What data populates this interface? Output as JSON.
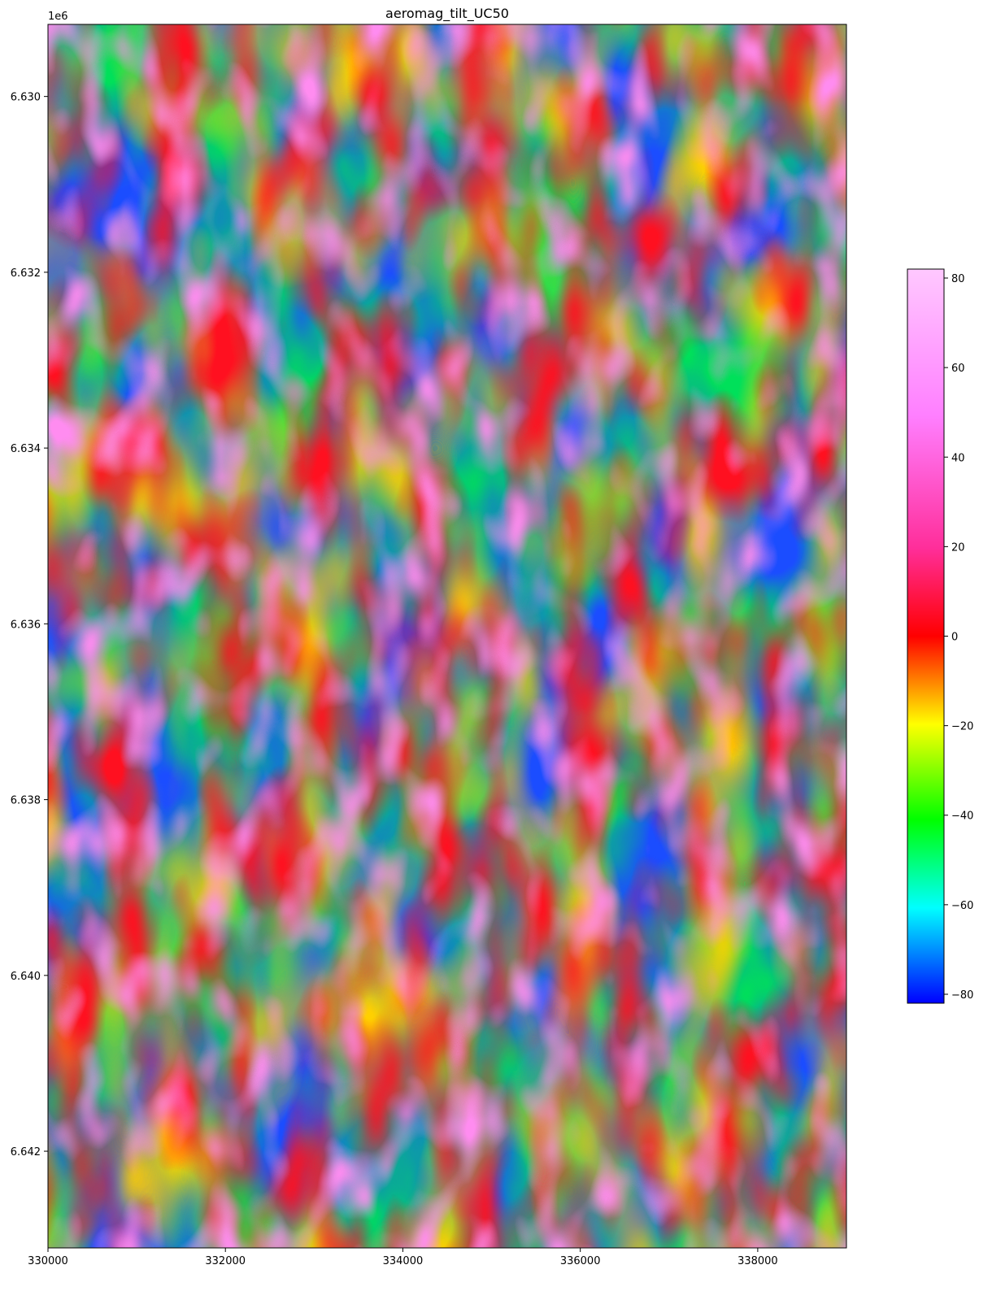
{
  "chart_data": {
    "type": "heatmap",
    "title": "aeromag_tilt_UC50",
    "xlabel": "",
    "ylabel": "",
    "y_offset_label": "1e6",
    "xlim": [
      330000,
      339000
    ],
    "ylim": [
      6.6431,
      6.62918
    ],
    "y_inverted": true,
    "x_ticks": [
      {
        "value": 330000,
        "label": "330000"
      },
      {
        "value": 332000,
        "label": "332000"
      },
      {
        "value": 334000,
        "label": "334000"
      },
      {
        "value": 336000,
        "label": "336000"
      },
      {
        "value": 338000,
        "label": "338000"
      }
    ],
    "y_ticks": [
      {
        "value": 6.63,
        "label": "6.630"
      },
      {
        "value": 6.632,
        "label": "6.632"
      },
      {
        "value": 6.634,
        "label": "6.634"
      },
      {
        "value": 6.636,
        "label": "6.636"
      },
      {
        "value": 6.638,
        "label": "6.638"
      },
      {
        "value": 6.64,
        "label": "6.640"
      },
      {
        "value": 6.642,
        "label": "6.642"
      }
    ],
    "colorbar": {
      "vmin": -82,
      "vmax": 82,
      "colormap": [
        "#0000ff",
        "#00ffff",
        "#00ff00",
        "#ffff00",
        "#ff8000",
        "#ff0000",
        "#ff2e9a",
        "#ff7fff",
        "#ffc8ff"
      ],
      "ticks": [
        {
          "value": 80,
          "label": "80"
        },
        {
          "value": 60,
          "label": "60"
        },
        {
          "value": 40,
          "label": "40"
        },
        {
          "value": 20,
          "label": "20"
        },
        {
          "value": 0,
          "label": "0"
        },
        {
          "value": -20,
          "label": "−20"
        },
        {
          "value": -40,
          "label": "−40"
        },
        {
          "value": -60,
          "label": "−60"
        },
        {
          "value": -80,
          "label": "−80"
        }
      ]
    },
    "grid": false
  }
}
